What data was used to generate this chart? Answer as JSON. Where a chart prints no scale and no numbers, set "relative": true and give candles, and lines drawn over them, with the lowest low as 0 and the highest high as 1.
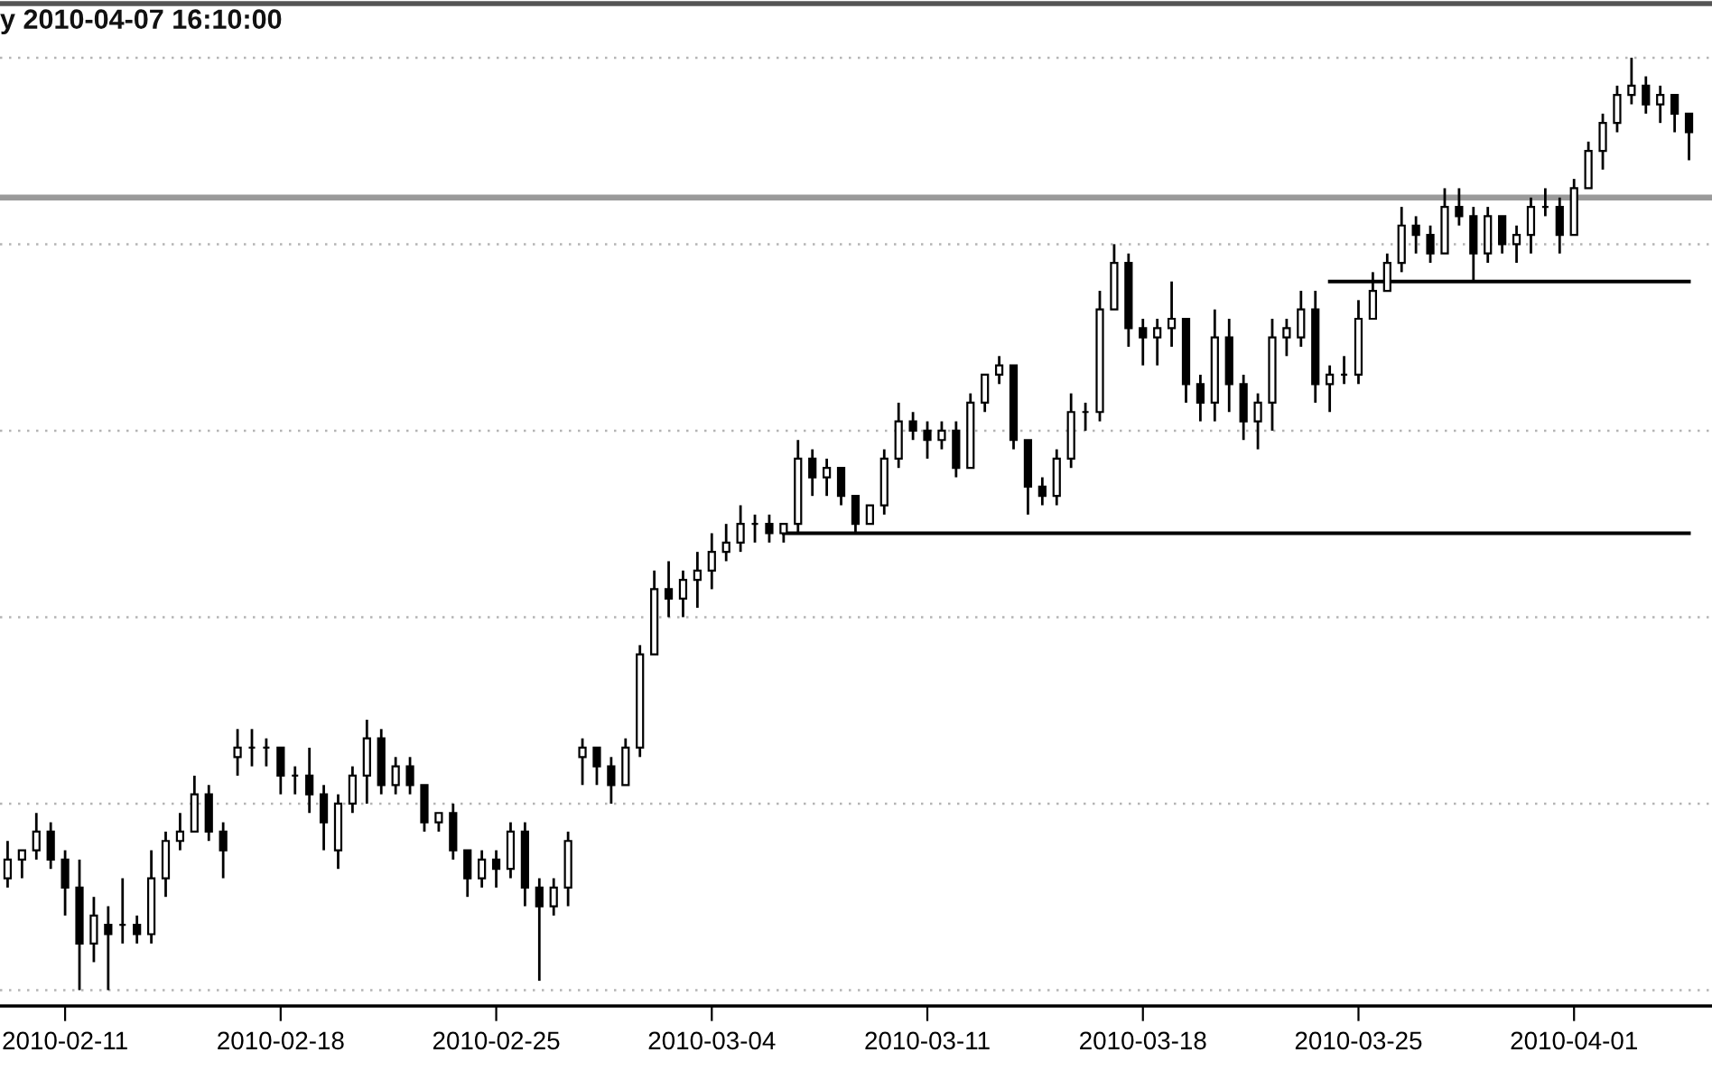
{
  "chart_data": {
    "type": "candlestick",
    "title": "y 2010-04-07 16:10:00",
    "relative": true,
    "grid": "y",
    "categories": [
      null,
      null,
      null,
      null,
      "2010-02-11",
      null,
      null,
      null,
      null,
      null,
      null,
      null,
      null,
      null,
      null,
      null,
      null,
      null,
      null,
      "2010-02-18",
      null,
      null,
      null,
      null,
      null,
      null,
      null,
      null,
      null,
      null,
      null,
      null,
      null,
      null,
      "2010-02-25",
      null,
      null,
      null,
      null,
      null,
      null,
      null,
      null,
      null,
      null,
      null,
      null,
      null,
      null,
      "2010-03-04",
      null,
      null,
      null,
      null,
      null,
      null,
      null,
      null,
      null,
      null,
      null,
      null,
      null,
      null,
      "2010-03-11",
      null,
      null,
      null,
      null,
      null,
      null,
      null,
      null,
      null,
      null,
      null,
      null,
      null,
      null,
      "2010-03-18",
      null,
      null,
      null,
      null,
      null,
      null,
      null,
      null,
      null,
      null,
      null,
      null,
      null,
      null,
      "2010-03-25",
      null,
      null,
      null,
      null,
      null,
      null,
      null,
      null,
      null,
      null,
      null,
      null,
      null,
      null,
      "2010-04-01",
      null,
      null,
      null,
      null,
      null,
      null,
      null,
      null
    ],
    "ohlc": [
      [
        0.12,
        0.16,
        0.11,
        0.14
      ],
      [
        0.14,
        0.15,
        0.12,
        0.15
      ],
      [
        0.15,
        0.19,
        0.14,
        0.17
      ],
      [
        0.17,
        0.18,
        0.13,
        0.14
      ],
      [
        0.14,
        0.15,
        0.08,
        0.11
      ],
      [
        0.11,
        0.14,
        0.0,
        0.05
      ],
      [
        0.05,
        0.1,
        0.03,
        0.08
      ],
      [
        0.07,
        0.09,
        0.0,
        0.06
      ],
      [
        0.07,
        0.12,
        0.05,
        0.07
      ],
      [
        0.07,
        0.08,
        0.05,
        0.06
      ],
      [
        0.06,
        0.15,
        0.05,
        0.12
      ],
      [
        0.12,
        0.17,
        0.1,
        0.16
      ],
      [
        0.16,
        0.19,
        0.15,
        0.17
      ],
      [
        0.17,
        0.23,
        0.17,
        0.21
      ],
      [
        0.21,
        0.22,
        0.16,
        0.17
      ],
      [
        0.17,
        0.18,
        0.12,
        0.15
      ],
      [
        0.25,
        0.28,
        0.23,
        0.26
      ],
      [
        0.26,
        0.28,
        0.24,
        0.26
      ],
      [
        0.26,
        0.27,
        0.24,
        0.26
      ],
      [
        0.26,
        0.26,
        0.21,
        0.23
      ],
      [
        0.23,
        0.24,
        0.21,
        0.23
      ],
      [
        0.23,
        0.26,
        0.19,
        0.21
      ],
      [
        0.21,
        0.22,
        0.15,
        0.18
      ],
      [
        0.15,
        0.21,
        0.13,
        0.2
      ],
      [
        0.2,
        0.24,
        0.19,
        0.23
      ],
      [
        0.23,
        0.29,
        0.2,
        0.27
      ],
      [
        0.27,
        0.28,
        0.21,
        0.22
      ],
      [
        0.22,
        0.25,
        0.21,
        0.24
      ],
      [
        0.24,
        0.25,
        0.21,
        0.22
      ],
      [
        0.22,
        0.22,
        0.17,
        0.18
      ],
      [
        0.18,
        0.19,
        0.17,
        0.19
      ],
      [
        0.19,
        0.2,
        0.14,
        0.15
      ],
      [
        0.15,
        0.15,
        0.1,
        0.12
      ],
      [
        0.12,
        0.15,
        0.11,
        0.14
      ],
      [
        0.14,
        0.15,
        0.11,
        0.13
      ],
      [
        0.13,
        0.18,
        0.12,
        0.17
      ],
      [
        0.17,
        0.18,
        0.09,
        0.11
      ],
      [
        0.11,
        0.12,
        0.01,
        0.09
      ],
      [
        0.09,
        0.12,
        0.08,
        0.11
      ],
      [
        0.11,
        0.17,
        0.09,
        0.16
      ],
      [
        0.25,
        0.27,
        0.22,
        0.26
      ],
      [
        0.26,
        0.26,
        0.22,
        0.24
      ],
      [
        0.24,
        0.25,
        0.2,
        0.22
      ],
      [
        0.22,
        0.27,
        0.22,
        0.26
      ],
      [
        0.26,
        0.37,
        0.25,
        0.36
      ],
      [
        0.36,
        0.45,
        0.36,
        0.43
      ],
      [
        0.43,
        0.46,
        0.4,
        0.42
      ],
      [
        0.42,
        0.45,
        0.4,
        0.44
      ],
      [
        0.44,
        0.47,
        0.41,
        0.45
      ],
      [
        0.45,
        0.49,
        0.43,
        0.47
      ],
      [
        0.47,
        0.5,
        0.46,
        0.48
      ],
      [
        0.48,
        0.52,
        0.47,
        0.5
      ],
      [
        0.5,
        0.51,
        0.48,
        0.5
      ],
      [
        0.5,
        0.51,
        0.48,
        0.49
      ],
      [
        0.49,
        0.5,
        0.48,
        0.5
      ],
      [
        0.5,
        0.59,
        0.49,
        0.57
      ],
      [
        0.57,
        0.58,
        0.53,
        0.55
      ],
      [
        0.55,
        0.57,
        0.53,
        0.56
      ],
      [
        0.56,
        0.56,
        0.52,
        0.53
      ],
      [
        0.53,
        0.53,
        0.49,
        0.5
      ],
      [
        0.5,
        0.52,
        0.5,
        0.52
      ],
      [
        0.52,
        0.58,
        0.51,
        0.57
      ],
      [
        0.57,
        0.63,
        0.56,
        0.61
      ],
      [
        0.61,
        0.62,
        0.59,
        0.6
      ],
      [
        0.6,
        0.61,
        0.57,
        0.59
      ],
      [
        0.59,
        0.61,
        0.58,
        0.6
      ],
      [
        0.6,
        0.61,
        0.55,
        0.56
      ],
      [
        0.56,
        0.64,
        0.56,
        0.63
      ],
      [
        0.63,
        0.66,
        0.62,
        0.66
      ],
      [
        0.66,
        0.68,
        0.65,
        0.67
      ],
      [
        0.67,
        0.67,
        0.58,
        0.59
      ],
      [
        0.59,
        0.59,
        0.51,
        0.54
      ],
      [
        0.54,
        0.55,
        0.52,
        0.53
      ],
      [
        0.53,
        0.58,
        0.52,
        0.57
      ],
      [
        0.57,
        0.64,
        0.56,
        0.62
      ],
      [
        0.62,
        0.63,
        0.6,
        0.62
      ],
      [
        0.62,
        0.75,
        0.61,
        0.73
      ],
      [
        0.73,
        0.8,
        0.73,
        0.78
      ],
      [
        0.78,
        0.79,
        0.69,
        0.71
      ],
      [
        0.71,
        0.72,
        0.67,
        0.7
      ],
      [
        0.7,
        0.72,
        0.67,
        0.71
      ],
      [
        0.71,
        0.76,
        0.69,
        0.72
      ],
      [
        0.72,
        0.72,
        0.63,
        0.65
      ],
      [
        0.65,
        0.66,
        0.61,
        0.63
      ],
      [
        0.63,
        0.73,
        0.61,
        0.7
      ],
      [
        0.7,
        0.72,
        0.62,
        0.65
      ],
      [
        0.65,
        0.66,
        0.59,
        0.61
      ],
      [
        0.61,
        0.64,
        0.58,
        0.63
      ],
      [
        0.63,
        0.72,
        0.6,
        0.7
      ],
      [
        0.7,
        0.72,
        0.68,
        0.71
      ],
      [
        0.7,
        0.75,
        0.69,
        0.73
      ],
      [
        0.73,
        0.75,
        0.63,
        0.65
      ],
      [
        0.65,
        0.67,
        0.62,
        0.66
      ],
      [
        0.66,
        0.68,
        0.65,
        0.66
      ],
      [
        0.66,
        0.74,
        0.65,
        0.72
      ],
      [
        0.72,
        0.77,
        0.72,
        0.75
      ],
      [
        0.75,
        0.79,
        0.75,
        0.78
      ],
      [
        0.78,
        0.84,
        0.77,
        0.82
      ],
      [
        0.82,
        0.83,
        0.79,
        0.81
      ],
      [
        0.81,
        0.82,
        0.78,
        0.79
      ],
      [
        0.79,
        0.86,
        0.79,
        0.84
      ],
      [
        0.84,
        0.86,
        0.82,
        0.83
      ],
      [
        0.83,
        0.84,
        0.76,
        0.79
      ],
      [
        0.79,
        0.84,
        0.78,
        0.83
      ],
      [
        0.83,
        0.83,
        0.79,
        0.8
      ],
      [
        0.8,
        0.82,
        0.78,
        0.81
      ],
      [
        0.81,
        0.85,
        0.79,
        0.84
      ],
      [
        0.84,
        0.86,
        0.83,
        0.84
      ],
      [
        0.84,
        0.85,
        0.79,
        0.81
      ],
      [
        0.81,
        0.87,
        0.81,
        0.86
      ],
      [
        0.86,
        0.91,
        0.86,
        0.9
      ],
      [
        0.9,
        0.94,
        0.88,
        0.93
      ],
      [
        0.93,
        0.97,
        0.92,
        0.96
      ],
      [
        0.96,
        1.0,
        0.95,
        0.97
      ],
      [
        0.97,
        0.98,
        0.94,
        0.95
      ],
      [
        0.95,
        0.97,
        0.93,
        0.96
      ],
      [
        0.96,
        0.96,
        0.92,
        0.94
      ],
      [
        0.94,
        0.94,
        0.89,
        0.92
      ]
    ],
    "series": [
      {
        "type": "line",
        "color": "#000000",
        "values": [
          null,
          null,
          null,
          null,
          null,
          null,
          null,
          null,
          null,
          null,
          null,
          null,
          null,
          null,
          null,
          null,
          null,
          null,
          null,
          null,
          null,
          null,
          null,
          null,
          null,
          null,
          null,
          null,
          null,
          null,
          null,
          null,
          null,
          null,
          null,
          null,
          null,
          null,
          null,
          null,
          null,
          null,
          null,
          null,
          null,
          null,
          null,
          null,
          null,
          null,
          null,
          null,
          null,
          null,
          0.49,
          0.49,
          0.49,
          0.49,
          0.49,
          0.49,
          0.49,
          0.49,
          0.49,
          0.49,
          0.49,
          0.49,
          0.49,
          0.49,
          0.49,
          0.49,
          0.49,
          0.49,
          0.49,
          0.49,
          0.49,
          0.49,
          0.49,
          0.49,
          0.49,
          0.49,
          0.49,
          0.49,
          0.49,
          0.49,
          0.49,
          0.49,
          0.49,
          0.49,
          0.49,
          0.49,
          0.49,
          0.49,
          0.49,
          0.49,
          0.49,
          0.49,
          0.49,
          0.49,
          0.49,
          0.49,
          0.49,
          0.49,
          0.49,
          0.49,
          0.49,
          0.49,
          0.49,
          0.49,
          0.49,
          0.49,
          0.49,
          0.49,
          0.49,
          0.49,
          0.49,
          0.49,
          0.49,
          0.49
        ]
      },
      {
        "type": "line",
        "color": "#000000",
        "values": [
          null,
          null,
          null,
          null,
          null,
          null,
          null,
          null,
          null,
          null,
          null,
          null,
          null,
          null,
          null,
          null,
          null,
          null,
          null,
          null,
          null,
          null,
          null,
          null,
          null,
          null,
          null,
          null,
          null,
          null,
          null,
          null,
          null,
          null,
          null,
          null,
          null,
          null,
          null,
          null,
          null,
          null,
          null,
          null,
          null,
          null,
          null,
          null,
          null,
          null,
          null,
          null,
          null,
          null,
          null,
          null,
          null,
          null,
          null,
          null,
          null,
          null,
          null,
          null,
          null,
          null,
          null,
          null,
          null,
          null,
          null,
          null,
          null,
          null,
          null,
          null,
          null,
          null,
          null,
          null,
          null,
          null,
          null,
          null,
          null,
          null,
          null,
          null,
          null,
          null,
          null,
          null,
          0.76,
          0.76,
          0.76,
          0.76,
          0.76,
          0.76,
          0.76,
          0.76,
          0.76,
          0.76,
          0.76,
          0.76,
          0.76,
          0.76,
          0.76,
          0.76,
          0.76,
          0.76,
          0.76,
          0.76,
          0.76,
          0.76,
          0.76,
          0.76,
          0.76,
          0.76
        ]
      }
    ],
    "ref_lines": [
      {
        "axis": "y",
        "value": 0.85,
        "color": "#9a9a9a"
      }
    ]
  }
}
